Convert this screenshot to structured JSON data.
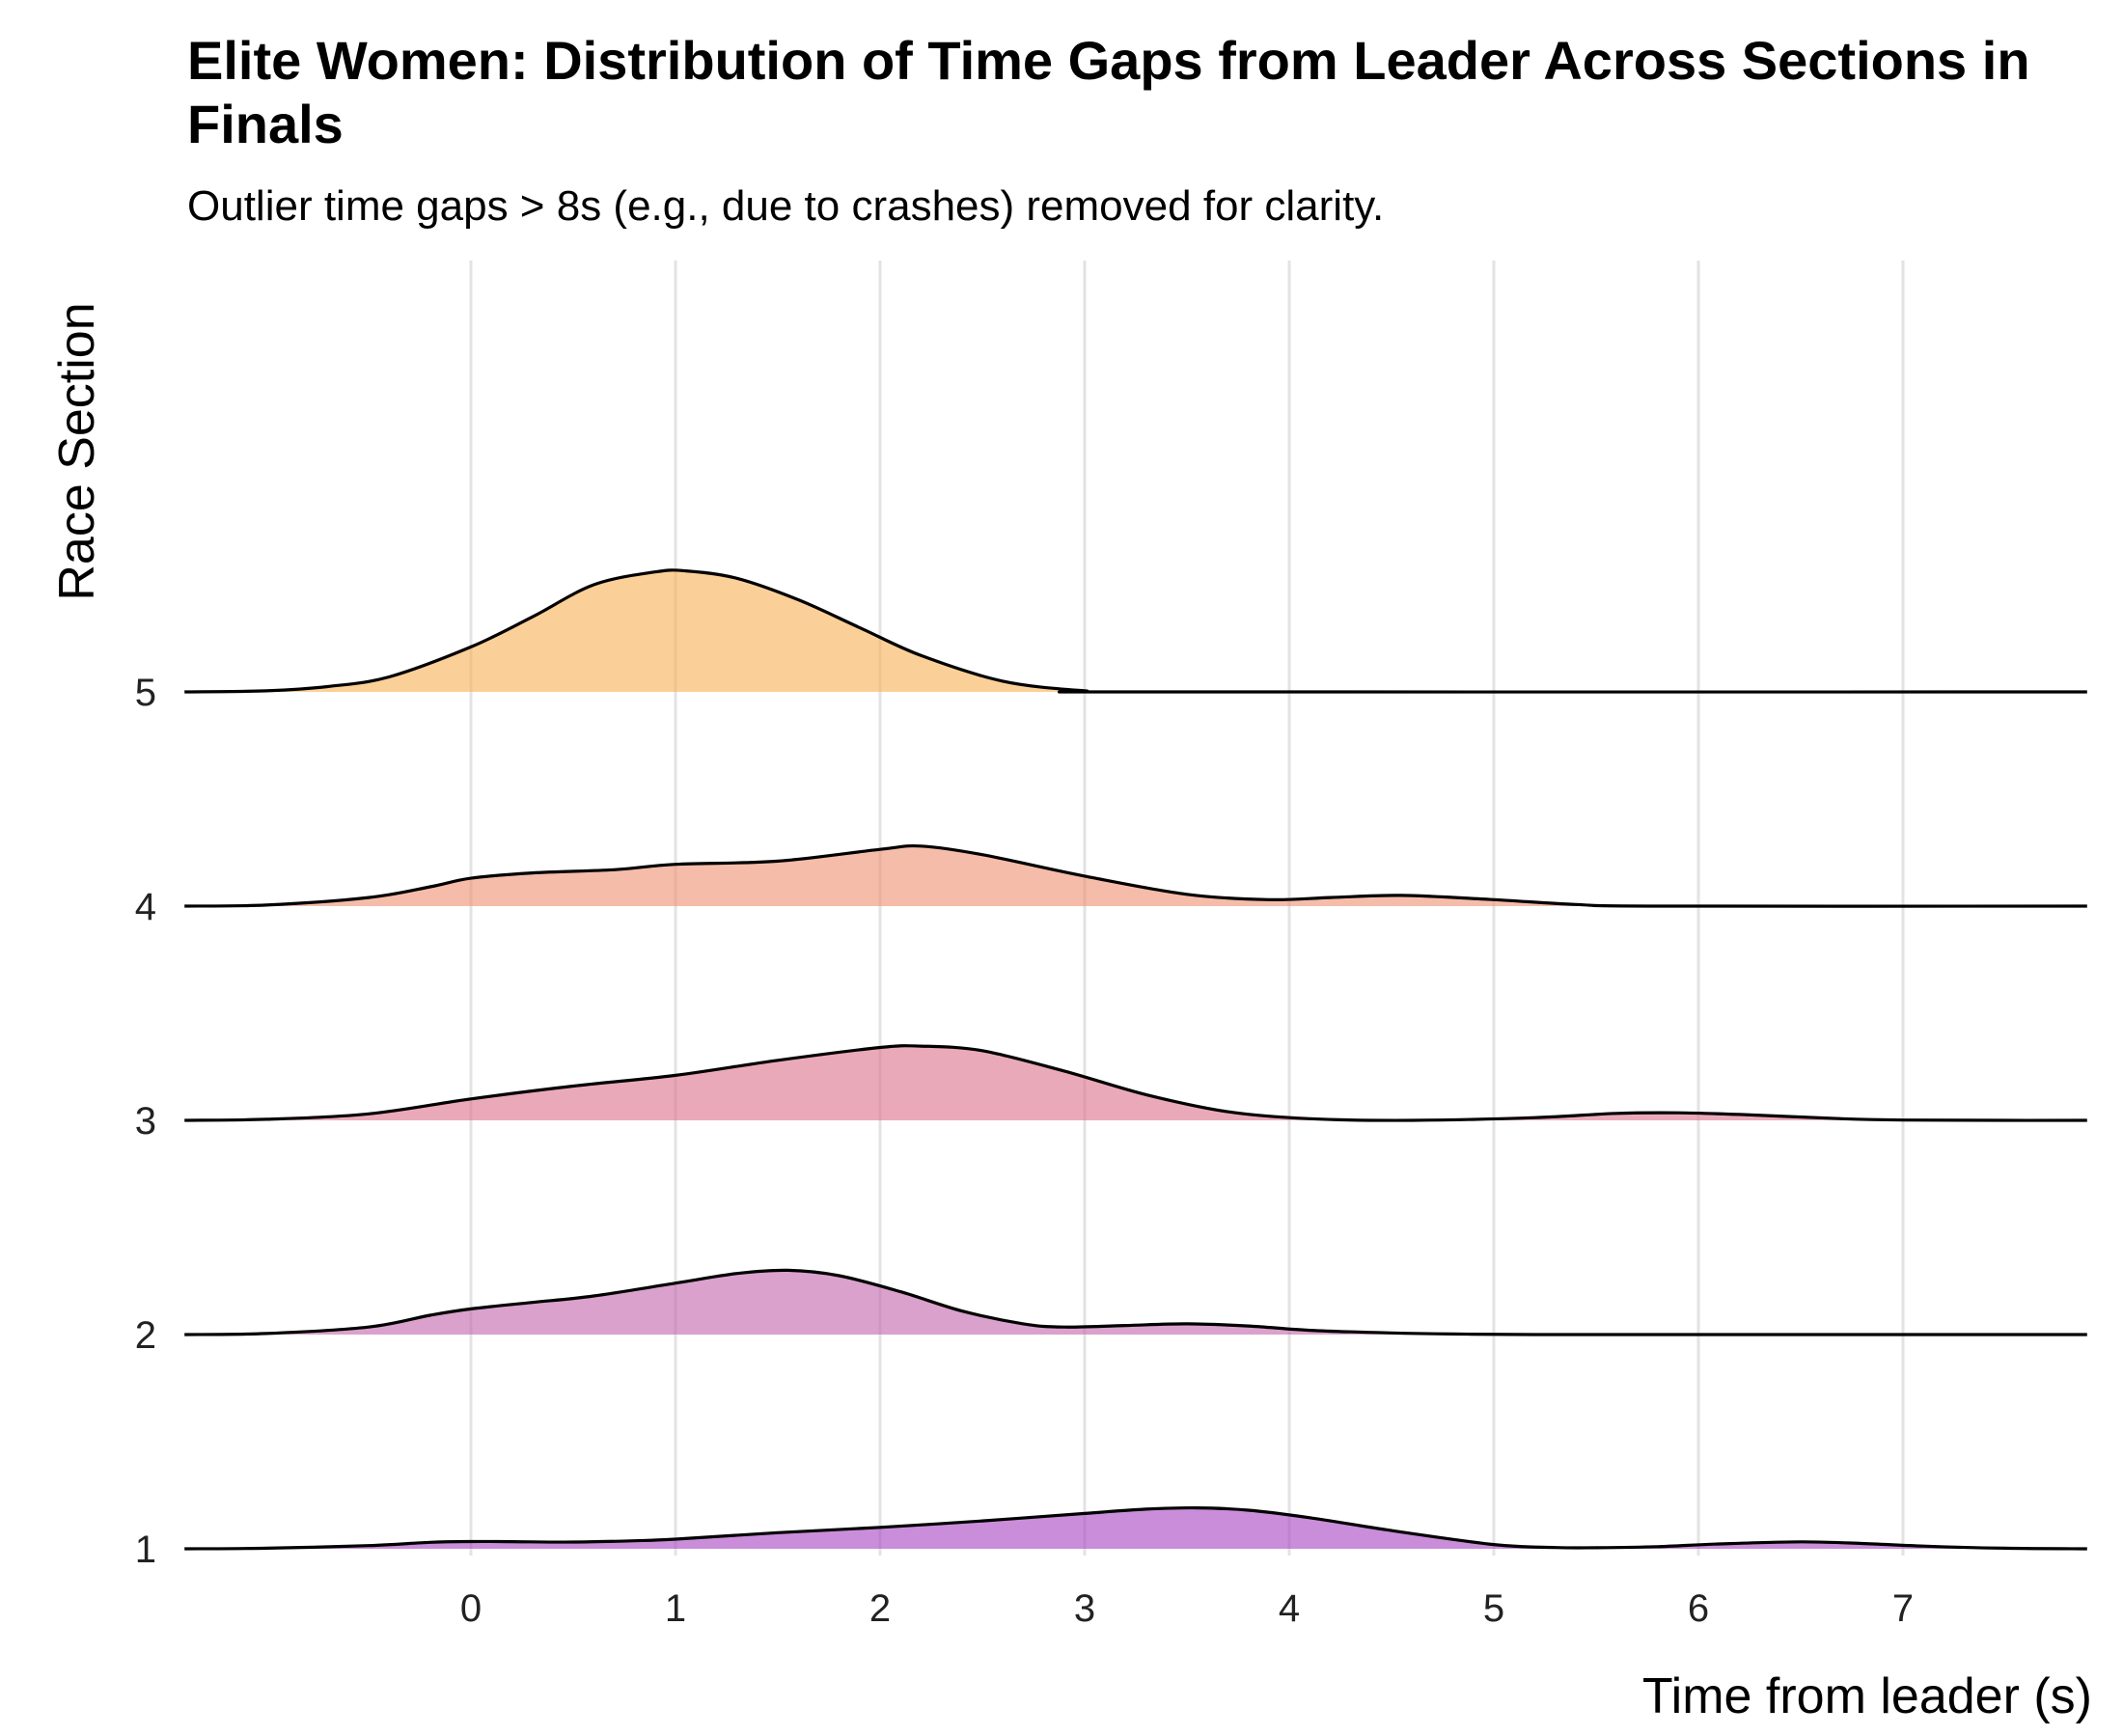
{
  "chart_data": {
    "type": "ridgeline",
    "title": "Elite Women: Distribution of Time Gaps from Leader Across Sections in Finals",
    "subtitle": "Outlier time gaps > 8s (e.g., due to crashes) removed for clarity.",
    "xlabel": "Time from leader (s)",
    "ylabel": "Race Section",
    "xlim": [
      -1.4,
      7.9
    ],
    "x_ticks": [
      0,
      1,
      2,
      3,
      4,
      5,
      6,
      7
    ],
    "grid": "vertical",
    "ridge_scale": 2.0,
    "series": [
      {
        "name": "1",
        "color": "#a741bf",
        "x": [
          -1.4,
          -1.0,
          -0.5,
          -0.2,
          0.0,
          0.2,
          0.5,
          0.8,
          1.0,
          1.5,
          2.0,
          2.5,
          3.0,
          3.3,
          3.55,
          3.8,
          4.1,
          4.5,
          5.0,
          5.3,
          5.5,
          5.8,
          6.1,
          6.5,
          6.8,
          7.1,
          7.5,
          7.9
        ],
        "density": [
          0.0,
          0.005,
          0.03,
          0.06,
          0.068,
          0.067,
          0.063,
          0.075,
          0.09,
          0.15,
          0.2,
          0.26,
          0.33,
          0.37,
          0.382,
          0.36,
          0.29,
          0.17,
          0.04,
          0.012,
          0.01,
          0.02,
          0.045,
          0.065,
          0.05,
          0.025,
          0.005,
          0.0
        ]
      },
      {
        "name": "2",
        "color": "#c263aa",
        "x": [
          -1.4,
          -1.0,
          -0.5,
          -0.2,
          0.0,
          0.3,
          0.6,
          1.0,
          1.3,
          1.55,
          1.8,
          2.1,
          2.4,
          2.7,
          2.9,
          3.2,
          3.5,
          3.8,
          4.1,
          4.5,
          4.8,
          5.2,
          6.0,
          7.9
        ],
        "density": [
          0.0,
          0.01,
          0.07,
          0.18,
          0.24,
          0.3,
          0.36,
          0.48,
          0.57,
          0.6,
          0.55,
          0.4,
          0.22,
          0.1,
          0.07,
          0.085,
          0.1,
          0.08,
          0.04,
          0.015,
          0.005,
          0.0,
          0.0,
          0.0
        ]
      },
      {
        "name": "3",
        "color": "#dc6f8b",
        "x": [
          -1.4,
          -1.0,
          -0.5,
          0.0,
          0.5,
          1.0,
          1.5,
          2.0,
          2.2,
          2.5,
          2.9,
          3.3,
          3.7,
          4.1,
          4.6,
          5.2,
          5.6,
          5.9,
          6.2,
          6.7,
          7.0,
          7.5,
          7.9
        ],
        "density": [
          0.0,
          0.01,
          0.06,
          0.2,
          0.32,
          0.42,
          0.56,
          0.68,
          0.693,
          0.65,
          0.46,
          0.24,
          0.08,
          0.015,
          0.0,
          0.025,
          0.065,
          0.07,
          0.055,
          0.015,
          0.003,
          0.0,
          0.0
        ]
      },
      {
        "name": "4",
        "color": "#ef8f72",
        "x": [
          -1.4,
          -1.0,
          -0.5,
          -0.2,
          0.0,
          0.3,
          0.7,
          1.0,
          1.5,
          2.0,
          2.2,
          2.5,
          3.0,
          3.5,
          3.9,
          4.2,
          4.55,
          5.0,
          5.4,
          5.8,
          7.9
        ],
        "density": [
          0.0,
          0.01,
          0.08,
          0.18,
          0.26,
          0.31,
          0.34,
          0.39,
          0.42,
          0.53,
          0.56,
          0.48,
          0.28,
          0.11,
          0.06,
          0.08,
          0.1,
          0.06,
          0.015,
          0.0,
          0.0
        ]
      },
      {
        "name": "5",
        "color": "#f8b153",
        "x": [
          -1.4,
          -1.0,
          -0.7,
          -0.4,
          0.0,
          0.3,
          0.6,
          0.9,
          1.05,
          1.3,
          1.6,
          1.9,
          2.2,
          2.6,
          3.0,
          3.3,
          7.9
        ],
        "density": [
          0.0,
          0.01,
          0.05,
          0.14,
          0.42,
          0.7,
          1.0,
          1.12,
          1.13,
          1.06,
          0.86,
          0.6,
          0.34,
          0.1,
          0.01,
          0.0,
          0.0
        ]
      }
    ]
  }
}
